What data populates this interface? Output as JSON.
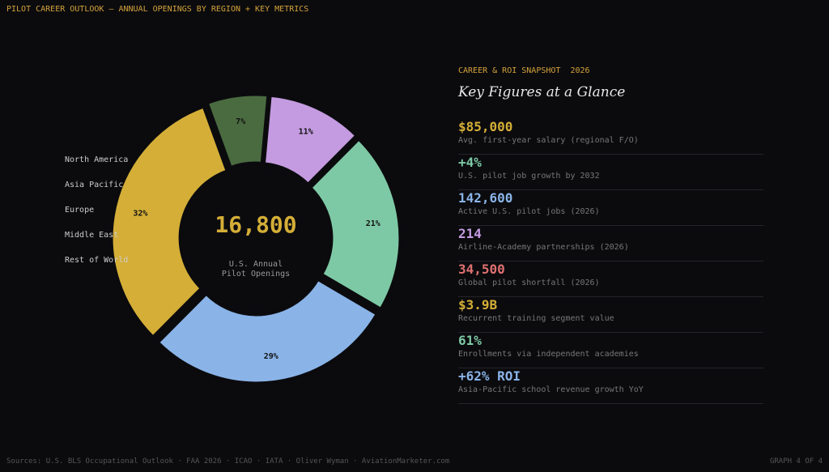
{
  "header": {
    "title": "PILOT CAREER OUTLOOK — ANNUAL OPENINGS BY REGION + KEY METRICS"
  },
  "chart_data": {
    "type": "donut",
    "categories": [
      "North America",
      "Asia Pacific",
      "Europe",
      "Middle East",
      "Rest of World"
    ],
    "values": [
      32,
      29,
      21,
      11,
      7
    ],
    "value_labels": [
      "32%",
      "29%",
      "21%",
      "11%",
      "7%"
    ],
    "colors": [
      "#d4ae37",
      "#8ab4e8",
      "#7ec9a5",
      "#c49be0",
      "#4a6b40"
    ],
    "center_text": "16,800",
    "center_caption": [
      "U.S. Annual",
      "Pilot Openings"
    ]
  },
  "panel": {
    "kicker": "CAREER & ROI SNAPSHOT  2026",
    "title": "Key Figures at a Glance",
    "metrics": [
      {
        "value": "$85,000",
        "label": "Avg. first-year salary (regional F/O)",
        "color": "#d4ae37"
      },
      {
        "value": "+4%",
        "label": "U.S. pilot job growth by 2032",
        "color": "#7ec9a5"
      },
      {
        "value": "142,600",
        "label": "Active U.S. pilot jobs (2026)",
        "color": "#8ab4e8"
      },
      {
        "value": "214",
        "label": "Airline-Academy partnerships (2026)",
        "color": "#c49be0"
      },
      {
        "value": "34,500",
        "label": "Global pilot shortfall (2026)",
        "color": "#e07070"
      },
      {
        "value": "$3.9B",
        "label": "Recurrent training segment value",
        "color": "#d4ae37"
      },
      {
        "value": "61%",
        "label": "Enrollments via independent academies",
        "color": "#7ec9a5"
      },
      {
        "value": "+62% ROI",
        "label": "Asia-Pacific school revenue growth YoY",
        "color": "#8ab4e8"
      }
    ]
  },
  "footer": {
    "sources": "Sources: U.S. BLS Occupational Outlook · FAA 2026 · ICAO · IATA · Oliver Wyman · AviationMarketer.com",
    "page": "GRAPH 4 OF 4"
  }
}
